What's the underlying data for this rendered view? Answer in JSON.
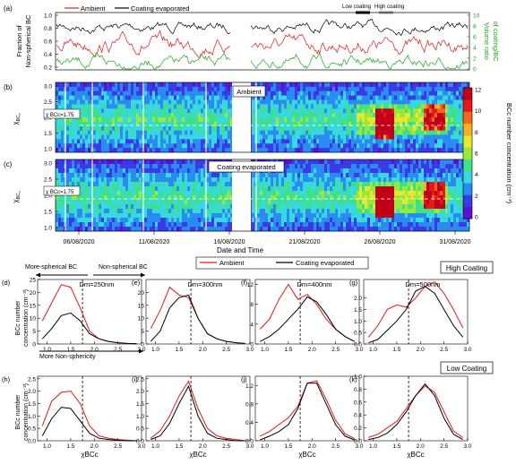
{
  "panel_letters": [
    "(a)",
    "(b)",
    "(c)",
    "(d)",
    "(e)",
    "(f)",
    "(g)",
    "(h)",
    "(i)",
    "(j)",
    "(k)"
  ],
  "top_legend": {
    "ambient": "Ambient",
    "coating": "Coating evaporated"
  },
  "hilo_legend": {
    "low": "Low coating",
    "high": "High coating"
  },
  "panel_a": {
    "ylabel_left_1": "Fraction of",
    "ylabel_left_2": "Non-spherical BC",
    "ylabel_right_1": "Volume ratio",
    "ylabel_right_2": "of coating/BC",
    "yticks_left": [
      "1.0",
      "0.8",
      "0.6",
      "0.4",
      "0.2"
    ],
    "yticks_right": [
      "10",
      "8",
      "6",
      "4",
      "2",
      "0"
    ]
  },
  "heatmap": {
    "ylabel": "χ",
    "ylabel_sub": "BC",
    "ylabel_subsub": "c",
    "yticks": [
      "3.0",
      "2.5",
      "2.0",
      "1.5",
      "1.0"
    ],
    "threshold_label": "χ BCc=1.75",
    "label_b": "Ambient",
    "label_c": "Coating evaporated",
    "xticks": [
      "06/08/2020",
      "11/08/2020",
      "16/08/2020",
      "21/08/2020",
      "26/08/2020",
      "31/08/2020"
    ],
    "xlabel": "Date and Time"
  },
  "colorbar": {
    "label": "BCc number concentration (cm⁻³)",
    "ticks": [
      "12",
      "10",
      "8",
      "6",
      "4",
      "2",
      "0"
    ],
    "colors": [
      "#5a12cc",
      "#3a3ae6",
      "#2a8cf0",
      "#38d8e0",
      "#3fe08a",
      "#9ae83a",
      "#e8e830",
      "#f8b020",
      "#f46a18",
      "#e81818",
      "#c00018"
    ]
  },
  "annotations": {
    "more_spherical": "More-spherical BC",
    "non_spherical": "Non-spherical BC",
    "more_non_sphericity": "More Non-sphericity",
    "legend_ambient": "Ambient",
    "legend_coating": "Coating evaporated",
    "high_coating": "High Coating",
    "low_coating": "Low Coating",
    "ylabel_1": "BCc number",
    "ylabel_2": "concentration (cm⁻³)",
    "xlabel": "χBCc"
  },
  "colors": {
    "ambient": "#e01818",
    "coating": "#000000",
    "volume_ratio": "#1aa81a"
  },
  "chart_data": [
    {
      "panel": "d",
      "type": "line",
      "diameter_label": "Dm=250nm",
      "x": [
        0.9,
        1.1,
        1.3,
        1.5,
        1.7,
        1.9,
        2.1,
        2.3,
        2.5,
        2.7,
        2.9
      ],
      "ylim": [
        0,
        25
      ],
      "yticks": [
        "25",
        "20",
        "15",
        "10",
        "5",
        "0"
      ],
      "series": [
        {
          "name": "Ambient",
          "values": [
            9,
            16,
            23,
            22,
            14,
            5,
            2,
            1,
            0.5,
            0.2,
            0.1
          ]
        },
        {
          "name": "Coating evaporated",
          "values": [
            2,
            6,
            11,
            12,
            9,
            4,
            2,
            1,
            0.5,
            0.2,
            0.1
          ]
        }
      ]
    },
    {
      "panel": "e",
      "type": "line",
      "diameter_label": "Dm=300nm",
      "x": [
        0.9,
        1.1,
        1.3,
        1.5,
        1.7,
        1.9,
        2.1,
        2.3,
        2.5,
        2.7,
        2.9
      ],
      "ylim": [
        0,
        25
      ],
      "yticks": [
        "20",
        "15",
        "10",
        "5",
        "0"
      ],
      "series": [
        {
          "name": "Ambient",
          "values": [
            6,
            13,
            22,
            19,
            18,
            10,
            4,
            2,
            1,
            0.5,
            0.2
          ]
        },
        {
          "name": "Coating evaporated",
          "values": [
            1,
            5,
            14,
            18,
            19,
            10,
            4,
            2,
            1,
            0.5,
            0.2
          ]
        }
      ]
    },
    {
      "panel": "f",
      "type": "line",
      "diameter_label": "Dm=400nm",
      "x": [
        0.9,
        1.1,
        1.3,
        1.5,
        1.7,
        1.9,
        2.1,
        2.3,
        2.5,
        2.7,
        2.9
      ],
      "ylim": [
        0,
        13
      ],
      "yticks": [
        "12",
        "8",
        "4",
        "0"
      ],
      "series": [
        {
          "name": "Ambient",
          "values": [
            3,
            5,
            9,
            12,
            9,
            10,
            8,
            5,
            3,
            1.5,
            0.5
          ]
        },
        {
          "name": "Coating evaporated",
          "values": [
            0.5,
            1.5,
            3,
            5,
            7,
            9.5,
            8.5,
            6,
            3,
            1.5,
            0.5
          ]
        }
      ]
    },
    {
      "panel": "g",
      "type": "line",
      "diameter_label": "Dm=500nm",
      "x": [
        0.9,
        1.1,
        1.3,
        1.5,
        1.7,
        1.9,
        2.1,
        2.3,
        2.5,
        2.7,
        2.9
      ],
      "ylim": [
        0,
        2.8
      ],
      "yticks": [
        "2.0",
        "1.5",
        "1.0",
        "0.5",
        "0.0"
      ],
      "series": [
        {
          "name": "Ambient",
          "values": [
            0.3,
            0.8,
            1.5,
            1.7,
            1.6,
            2.0,
            2.5,
            2.7,
            2.2,
            1.5,
            0.7
          ]
        },
        {
          "name": "Coating evaporated",
          "values": [
            0.05,
            0.2,
            0.6,
            1.0,
            1.5,
            2.3,
            2.5,
            2.2,
            1.5,
            0.8,
            0.3
          ]
        }
      ]
    },
    {
      "panel": "h",
      "type": "line",
      "x": [
        0.9,
        1.1,
        1.3,
        1.5,
        1.7,
        1.9,
        2.1,
        2.3,
        2.5,
        2.7,
        2.9
      ],
      "ylim": [
        0,
        2.6
      ],
      "yticks": [
        "2.5",
        "2.0",
        "1.5",
        "1.0",
        "0.5",
        "0.0"
      ],
      "series": [
        {
          "name": "Ambient",
          "values": [
            0.6,
            1.6,
            1.95,
            2.0,
            1.5,
            0.6,
            0.2,
            0.1,
            0.05,
            0.02,
            0.0
          ]
        },
        {
          "name": "Coating evaporated",
          "values": [
            0.2,
            0.9,
            1.35,
            1.3,
            0.8,
            0.3,
            0.1,
            0.05,
            0.02,
            0.0,
            0.0
          ]
        }
      ]
    },
    {
      "panel": "i",
      "type": "line",
      "x": [
        0.9,
        1.1,
        1.3,
        1.5,
        1.7,
        1.9,
        2.1,
        2.3,
        2.5,
        2.7,
        2.9
      ],
      "ylim": [
        0,
        2.6
      ],
      "yticks": [
        "2.5",
        "2.0",
        "1.5",
        "1.0",
        "0.5",
        "0.0"
      ],
      "series": [
        {
          "name": "Ambient",
          "values": [
            0.1,
            0.4,
            1.0,
            1.8,
            2.4,
            1.3,
            0.5,
            0.2,
            0.1,
            0.05,
            0.0
          ]
        },
        {
          "name": "Coating evaporated",
          "values": [
            0.05,
            0.2,
            0.7,
            1.5,
            2.2,
            1.0,
            0.3,
            0.1,
            0.05,
            0.0,
            0.0
          ]
        }
      ]
    },
    {
      "panel": "j",
      "type": "line",
      "x": [
        0.9,
        1.1,
        1.3,
        1.5,
        1.7,
        1.9,
        2.1,
        2.3,
        2.5,
        2.7,
        2.9
      ],
      "ylim": [
        0,
        1.4
      ],
      "yticks": [
        "1.2",
        "0.8",
        "0.4",
        "0.0"
      ],
      "series": [
        {
          "name": "Ambient",
          "values": [
            0.1,
            0.2,
            0.35,
            0.5,
            0.75,
            1.25,
            1.3,
            0.9,
            0.45,
            0.15,
            0.05
          ]
        },
        {
          "name": "Coating evaporated",
          "values": [
            0.02,
            0.1,
            0.2,
            0.35,
            0.7,
            1.25,
            1.25,
            0.8,
            0.35,
            0.1,
            0.02
          ]
        }
      ]
    },
    {
      "panel": "k",
      "type": "line",
      "x": [
        0.9,
        1.1,
        1.3,
        1.5,
        1.7,
        1.9,
        2.1,
        2.3,
        2.5,
        2.7,
        2.9
      ],
      "ylim": [
        0,
        1.0
      ],
      "yticks": [
        "1.0",
        "0.8",
        "0.6",
        "0.4",
        "0.2",
        "0.0"
      ],
      "series": [
        {
          "name": "Ambient",
          "values": [
            0.05,
            0.1,
            0.2,
            0.3,
            0.5,
            0.7,
            0.85,
            0.75,
            0.45,
            0.15,
            0.05
          ]
        },
        {
          "name": "Coating evaporated",
          "values": [
            0.02,
            0.05,
            0.12,
            0.25,
            0.45,
            0.7,
            0.88,
            0.7,
            0.35,
            0.1,
            0.02
          ]
        }
      ]
    }
  ]
}
